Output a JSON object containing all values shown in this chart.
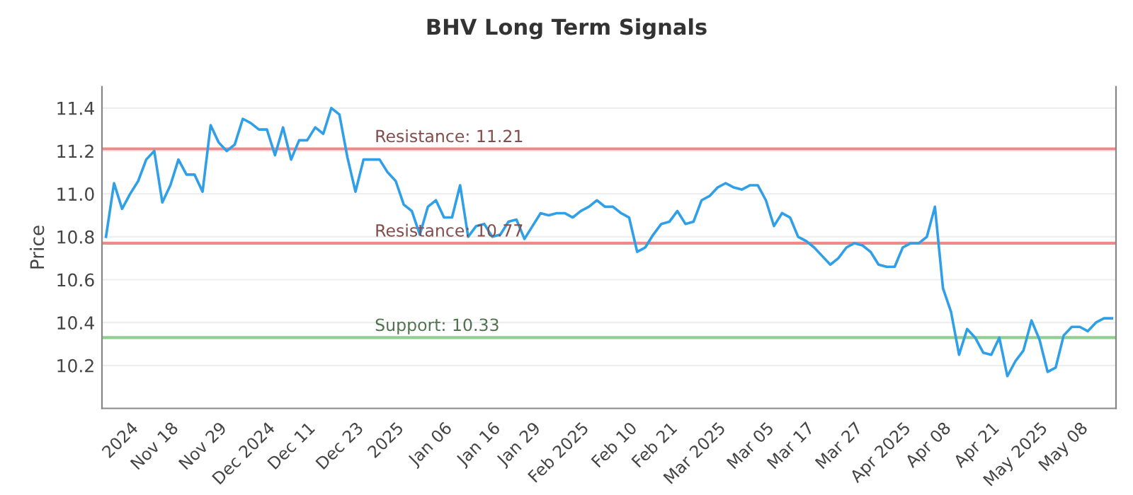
{
  "chart_data": {
    "type": "line",
    "title": "BHV Long Term Signals",
    "ylabel": "Price",
    "categories": [
      null,
      null,
      null,
      "2024",
      null,
      null,
      null,
      null,
      "Nov 18",
      null,
      null,
      null,
      null,
      null,
      "Nov 29",
      null,
      null,
      null,
      null,
      null,
      "Dec 2024",
      null,
      null,
      null,
      null,
      "Dec 11",
      null,
      null,
      null,
      null,
      null,
      "Dec 23",
      null,
      null,
      null,
      null,
      "2025",
      null,
      null,
      null,
      null,
      null,
      "Jan 06",
      null,
      null,
      null,
      null,
      null,
      "Jan 16",
      null,
      null,
      null,
      null,
      "Jan 29",
      null,
      null,
      null,
      null,
      null,
      "Feb 2025",
      null,
      null,
      null,
      null,
      null,
      "Feb 10",
      null,
      null,
      null,
      null,
      "Feb 21",
      null,
      null,
      null,
      null,
      null,
      "Mar 2025",
      null,
      null,
      null,
      null,
      null,
      "Mar 05",
      null,
      null,
      null,
      null,
      "Mar 17",
      null,
      null,
      null,
      null,
      null,
      "Mar 27",
      null,
      null,
      null,
      null,
      null,
      "Apr 2025",
      null,
      null,
      null,
      null,
      "Apr 08",
      null,
      null,
      null,
      null,
      null,
      "Apr 21",
      null,
      null,
      null,
      null,
      null,
      "May 2025",
      null,
      null,
      null,
      null,
      "May 08",
      null,
      null,
      null,
      null
    ],
    "series": [
      {
        "color": "#2f9fe8",
        "values": [
          10.8,
          11.05,
          10.93,
          11.0,
          11.06,
          11.16,
          11.2,
          10.96,
          11.04,
          11.16,
          11.09,
          11.09,
          11.01,
          11.32,
          11.24,
          11.2,
          11.23,
          11.35,
          11.33,
          11.3,
          11.3,
          11.18,
          11.31,
          11.16,
          11.25,
          11.25,
          11.31,
          11.28,
          11.4,
          11.37,
          11.17,
          11.01,
          11.16,
          11.16,
          11.16,
          11.1,
          11.06,
          10.95,
          10.92,
          10.81,
          10.94,
          10.97,
          10.89,
          10.89,
          11.04,
          10.8,
          10.85,
          10.86,
          10.8,
          10.81,
          10.87,
          10.88,
          10.79,
          10.85,
          10.91,
          10.9,
          10.91,
          10.91,
          10.89,
          10.92,
          10.94,
          10.97,
          10.94,
          10.94,
          10.91,
          10.89,
          10.73,
          10.75,
          10.81,
          10.86,
          10.87,
          10.92,
          10.86,
          10.87,
          10.97,
          10.99,
          11.03,
          11.05,
          11.03,
          11.02,
          11.04,
          11.04,
          10.97,
          10.85,
          10.91,
          10.89,
          10.8,
          10.78,
          10.75,
          10.71,
          10.67,
          10.7,
          10.75,
          10.77,
          10.76,
          10.73,
          10.67,
          10.66,
          10.66,
          10.75,
          10.77,
          10.77,
          10.8,
          10.94,
          10.56,
          10.45,
          10.25,
          10.37,
          10.33,
          10.26,
          10.25,
          10.33,
          10.15,
          10.22,
          10.27,
          10.41,
          10.32,
          10.17,
          10.19,
          10.34,
          10.38,
          10.38,
          10.36,
          10.4,
          10.42,
          10.42
        ]
      }
    ],
    "ylim": [
      10.0,
      11.5
    ],
    "yticks": [
      10.2,
      10.4,
      10.6,
      10.8,
      {
        "value": 11,
        "label": "11.0"
      },
      11.2,
      11.4
    ],
    "grid": "y",
    "marker": "none",
    "line_style": "solid",
    "ref_lines": [
      {
        "axis": "y",
        "value": 11.21,
        "label": "Resistance: 11.21",
        "color": "#f08a8a"
      },
      {
        "axis": "y",
        "value": 10.77,
        "label": "Resistance: 10.77",
        "color": "#f08a8a"
      },
      {
        "axis": "y",
        "value": 10.33,
        "label": "Support: 10.33",
        "color": "#8fcf8f"
      }
    ]
  }
}
